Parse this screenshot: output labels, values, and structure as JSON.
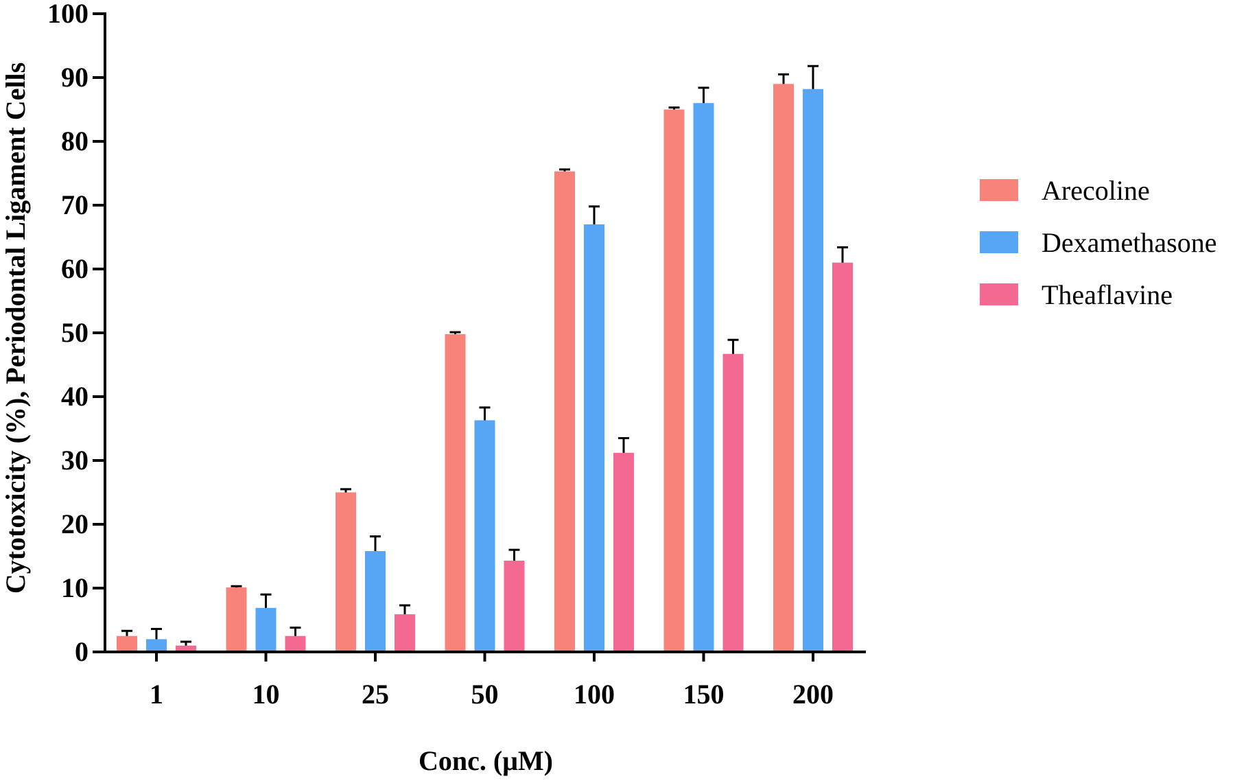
{
  "chart_data": {
    "type": "bar",
    "xlabel": "Conc. (μM)",
    "ylabel": "Cytotoxicity (%), Periodontal Ligament Cells",
    "ylim": [
      0,
      100
    ],
    "yticks": [
      "0",
      "10",
      "20",
      "30",
      "40",
      "50",
      "60",
      "70",
      "80",
      "90",
      "100"
    ],
    "categories": [
      "1",
      "10",
      "25",
      "50",
      "100",
      "150",
      "200"
    ],
    "series": [
      {
        "name": "Arecoline",
        "color": "#F8837B",
        "values": [
          2.5,
          10.1,
          25.0,
          49.8,
          75.3,
          85.0,
          89.0
        ],
        "errors": [
          0.8,
          0.2,
          0.5,
          0.3,
          0.3,
          0.3,
          1.5
        ]
      },
      {
        "name": "Dexamethasone",
        "color": "#57A5F5",
        "values": [
          2.0,
          6.9,
          15.8,
          36.3,
          67.0,
          86.0,
          88.2
        ],
        "errors": [
          1.6,
          2.1,
          2.3,
          2.0,
          2.8,
          2.4,
          3.6
        ]
      },
      {
        "name": "Theaflavine",
        "color": "#F46992",
        "values": [
          1.0,
          2.5,
          5.9,
          14.3,
          31.2,
          46.7,
          61.0
        ],
        "errors": [
          0.6,
          1.3,
          1.4,
          1.7,
          2.3,
          2.2,
          2.4
        ]
      }
    ],
    "legend_position": "right",
    "grid": false
  }
}
